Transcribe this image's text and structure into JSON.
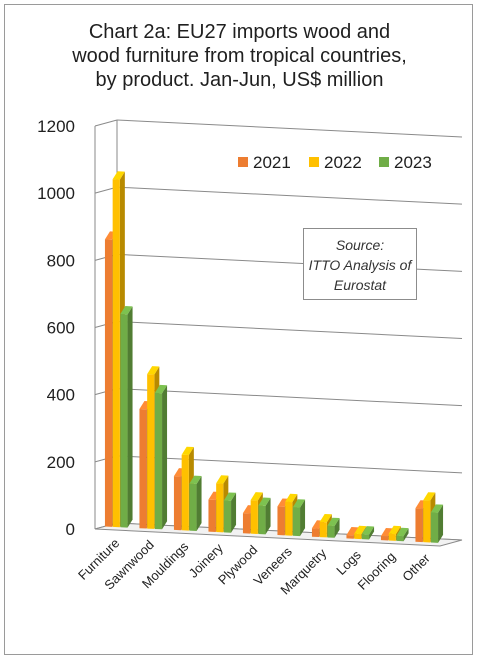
{
  "title_lines": [
    "Chart 2a: EU27 imports wood and",
    "wood furniture from tropical countries,",
    "by product. Jan-Jun, US$ million"
  ],
  "source_lines": [
    "Source:",
    "ITTO Analysis of",
    "Eurostat"
  ],
  "chart_data": {
    "type": "bar",
    "title": "Chart 2a: EU27 imports wood and wood furniture from tropical countries, by product. Jan-Jun, US$ million",
    "categories": [
      "Furniture",
      "Sawnwood",
      "Mouldings",
      "Joinery",
      "Plywood",
      "Veneers",
      "Marquetry",
      "Logs",
      "Flooring",
      "Other"
    ],
    "series": [
      {
        "name": "2021",
        "color": "#ED7D31",
        "values": [
          855,
          355,
          160,
          95,
          60,
          85,
          25,
          10,
          12,
          100
        ]
      },
      {
        "name": "2022",
        "color": "#FFC000",
        "values": [
          1035,
          460,
          225,
          145,
          100,
          100,
          45,
          15,
          20,
          125
        ]
      },
      {
        "name": "2023",
        "color": "#70AD47",
        "values": [
          635,
          405,
          140,
          95,
          85,
          85,
          35,
          15,
          15,
          90
        ]
      }
    ],
    "ylim": [
      0,
      1200
    ],
    "yticks": [
      "0",
      "200",
      "400",
      "600",
      "800",
      "1000",
      "1200"
    ],
    "grid": true,
    "legend": "top-right"
  }
}
